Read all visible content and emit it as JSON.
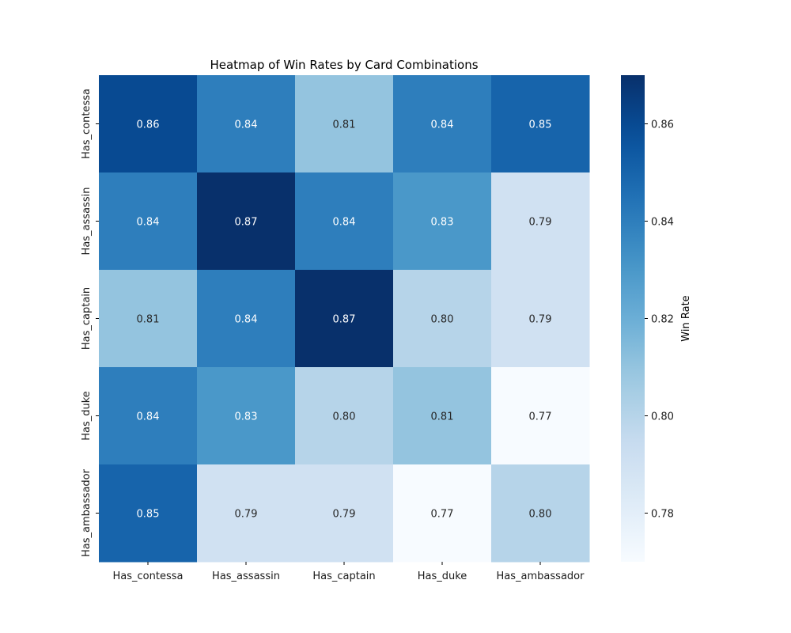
{
  "chart_data": {
    "type": "heatmap",
    "title": "Heatmap of Win Rates by Card Combinations",
    "x_categories": [
      "Has_contessa",
      "Has_assassin",
      "Has_captain",
      "Has_duke",
      "Has_ambassador"
    ],
    "y_categories": [
      "Has_contessa",
      "Has_assassin",
      "Has_captain",
      "Has_duke",
      "Has_ambassador"
    ],
    "values": [
      [
        0.86,
        0.84,
        0.81,
        0.84,
        0.85
      ],
      [
        0.84,
        0.87,
        0.84,
        0.83,
        0.79
      ],
      [
        0.81,
        0.84,
        0.87,
        0.8,
        0.79
      ],
      [
        0.84,
        0.83,
        0.8,
        0.81,
        0.77
      ],
      [
        0.85,
        0.79,
        0.79,
        0.77,
        0.8
      ]
    ],
    "colormap": "Blues",
    "colorbar": {
      "label": "Win Rate",
      "range": [
        0.77,
        0.87
      ],
      "ticks": [
        0.78,
        0.8,
        0.82,
        0.84,
        0.86
      ]
    },
    "annotate": true
  }
}
